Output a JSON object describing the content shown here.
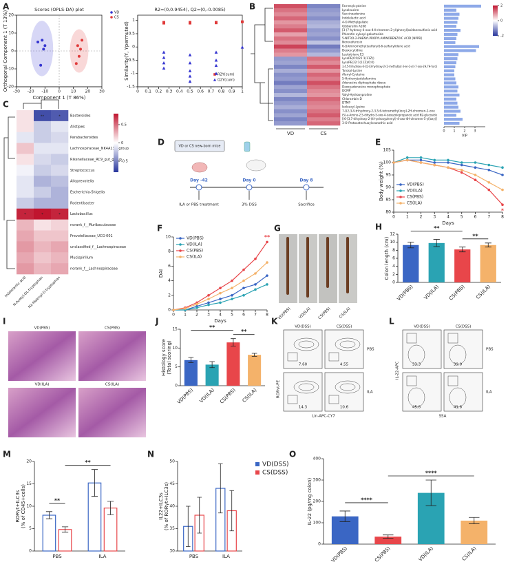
{
  "chart_data": [
    {
      "panel": "A",
      "type": "scatter",
      "title": "Scores (OPLS-DA) plot",
      "xlabel": "Component 1 (T 86%)",
      "ylabel": "Orthogonal Component 1 (T 13%)",
      "xlim": [
        -30,
        30
      ],
      "xticks": [
        -30,
        -20,
        -10,
        0,
        10,
        20,
        30
      ],
      "ylim": [
        -20,
        20
      ],
      "yticks": [
        -20,
        -10,
        0,
        10,
        20
      ],
      "ellipse": true,
      "legend": "right",
      "series": [
        {
          "name": "VD",
          "color": "#3535d0",
          "marker": "circle",
          "x": [
            -15,
            -12,
            -10,
            -13,
            -11
          ],
          "y": [
            5,
            6,
            3,
            -8,
            1
          ]
        },
        {
          "name": "CS",
          "color": "#e03a3a",
          "marker": "circle",
          "x": [
            13,
            15,
            14,
            16,
            12
          ],
          "y": [
            3,
            1,
            -3,
            6,
            -7
          ]
        }
      ]
    },
    {
      "type": "scatter",
      "title": "R2=(0,0.9454), Q2=(0,-0.0085)",
      "ylabel": "Similarity(Y, Ypermuted)",
      "xlim": [
        0,
        1
      ],
      "xticks": [
        0,
        0.1,
        0.2,
        0.3,
        0.4,
        0.5,
        0.6,
        0.7,
        0.8,
        0.9,
        1
      ],
      "ylim": [
        -1.5,
        1.2
      ],
      "yticks": [
        -1.5,
        -1,
        -0.5,
        0,
        0.5,
        1
      ],
      "legend": "lower right",
      "series": [
        {
          "name": "R2Y(cum)",
          "color": "#e03a3a",
          "marker": "square",
          "x": [
            1,
            0.25,
            0.25,
            0.5,
            0.5,
            0.75,
            0.75
          ],
          "y": [
            0.95,
            0.93,
            0.9,
            0.93,
            0.9,
            0.93,
            0.91
          ]
        },
        {
          "name": "Q2Y(cum)",
          "color": "#3535d0",
          "marker": "triangle",
          "x": [
            1,
            0.25,
            0.25,
            0.25,
            0.25,
            0.5,
            0.5,
            0.5,
            0.5,
            0.5,
            0.75,
            0.75,
            0.75,
            0.75
          ],
          "y": [
            -0.01,
            -0.2,
            -0.4,
            -0.6,
            -0.8,
            -0.3,
            -0.6,
            -0.9,
            -1.1,
            -1.3,
            -0.2,
            -0.5,
            -0.7,
            -1.0
          ]
        }
      ]
    },
    {
      "panel": "B",
      "type": "heatmap",
      "columns": [
        "VD",
        "CS"
      ],
      "clim": [
        -2,
        2
      ],
      "colorbar_ticks": [
        2,
        0,
        -2
      ],
      "rows": [
        "Farnesylcysteine",
        "Lysoleucine",
        "Succinoadenine",
        "Indolelactic acid",
        "4-O-Methylgallate",
        "Gibberellin A108",
        "[3-(7-hydroxy-4-oxo-4H-chromen-2-yl)phenyl]oxidanesulfonic acid",
        "Phloretin xylosyl-galactoside",
        "5-NITRO-2-PHENYLPROPYLAMINOBENZOIC ACID [NPPB]",
        "Norevafurosin",
        "6-[(Aminomethyl)sulfanyl]-6-sulfanylidene acid",
        "Deoxycytidine",
        "Leukotriene E3",
        "LysoPE(0:0/22:1(11Z))",
        "LysoPE(22:1(11Z)/0:0)",
        "3,4,5-trihydroxy-6-[(2-[3-hydroxy-2-(2-methylbut-3-en-2-yl)-7-oxo-2H,7H-furo]",
        "Tyrosyl-Lysine",
        "Alanyl-Cysteine",
        "5-Hydroxytadalafamine",
        "Adenosine diphosphate ribose",
        "Deoxyadenosine monophosphate",
        "DCMP",
        "Valyl-Hydroxyproline",
        "Chlorambin D",
        "DTMP",
        "Isoleucyl-Lysine",
        "7-[(2,3,4-trihydroxy-2,3,5,6-tetramethyl)oxy]-2H-chromen-2-one",
        "(S)-a-Amino-2,5-dihydro-5-oxo-4-isoxazolepropanoic acid N2-glucoside",
        "[(6-[3,7-dihydroxy-2-(4-hydroxyphenyl)-4-oxo-4H-chromen-5-yl]oxy)]",
        "3-O-Protocatechuoylceanothic acid"
      ],
      "values": [
        [
          1.5,
          -1.2
        ],
        [
          1.2,
          -1.0
        ],
        [
          1.0,
          -0.9
        ],
        [
          1.3,
          -1.1
        ],
        [
          0.9,
          -0.8
        ],
        [
          1.1,
          -0.7
        ],
        [
          1.4,
          -1.0
        ],
        [
          0.8,
          -0.9
        ],
        [
          1.2,
          -1.1
        ],
        [
          1.0,
          -0.6
        ],
        [
          1.6,
          -1.3
        ],
        [
          1.1,
          -1.0
        ],
        [
          0.9,
          -0.7
        ],
        [
          -1.0,
          1.2
        ],
        [
          -0.9,
          1.0
        ],
        [
          -1.2,
          1.4
        ],
        [
          -0.8,
          0.9
        ],
        [
          -1.1,
          1.3
        ],
        [
          -1.0,
          1.1
        ],
        [
          -1.3,
          1.5
        ],
        [
          -0.9,
          1.2
        ],
        [
          -1.1,
          1.0
        ],
        [
          -0.7,
          0.9
        ],
        [
          -1.2,
          1.3
        ],
        [
          -1.0,
          1.1
        ],
        [
          -0.8,
          1.0
        ],
        [
          -1.1,
          1.2
        ],
        [
          -0.9,
          1.4
        ],
        [
          -1.2,
          1.1
        ],
        [
          -1.0,
          1.3
        ]
      ],
      "vip": [
        3.6,
        1.2,
        1.5,
        1.4,
        1.3,
        1.2,
        1.6,
        1.3,
        1.2,
        1.1,
        3.4,
        3.1,
        1.4,
        1.3,
        1.2,
        1.1,
        1.0,
        1.0,
        1.1,
        1.2,
        1.4,
        1.3,
        1.5,
        1.2,
        1.3,
        1.4,
        1.6,
        1.2,
        1.8,
        1.5
      ],
      "vip_lim": [
        0,
        4
      ],
      "vip_ticks": [
        0,
        1,
        2,
        3
      ],
      "vip_label": "VIP",
      "vip_color": "#8ea9e8"
    },
    {
      "panel": "C",
      "type": "heatmap",
      "columns": [
        "Indolelactic acid",
        "N-Acetyl-DL-tryptophan",
        "N2-Malonyl-D-tryptophan"
      ],
      "clim": [
        -0.8,
        0.8
      ],
      "colorbar_ticks": [
        0.5,
        0,
        -0.5
      ],
      "rows": [
        "Bacteroides",
        "Alistipes",
        "Parabacteroides",
        "Lachnospiraceae_NK4A136_group",
        "Rikenellaceae_RC9_gut_group",
        "Streptococcus",
        "Alloprevotella",
        "Escherichia-Shigella",
        "Rodentibacter",
        "Lactobacillus",
        "norank_f__Muribaculaceae",
        "Prevotellaceae_UCG-001",
        "unclassified_f__Lachnospiraceae",
        "Mucispirillum",
        "norank_f__Lachnospiraceae"
      ],
      "values": [
        [
          0.1,
          -0.7,
          -0.65
        ],
        [
          0.1,
          -0.2,
          -0.1
        ],
        [
          -0.1,
          -0.2,
          -0.15
        ],
        [
          0.2,
          -0.1,
          -0.1
        ],
        [
          0.1,
          -0.15,
          -0.2
        ],
        [
          -0.05,
          -0.2,
          -0.15
        ],
        [
          -0.1,
          -0.3,
          -0.25
        ],
        [
          -0.1,
          -0.2,
          -0.3
        ],
        [
          -0.2,
          -0.3,
          -0.3
        ],
        [
          0.75,
          0.8,
          0.75
        ],
        [
          0.25,
          0.1,
          0.15
        ],
        [
          0.3,
          0.2,
          0.2
        ],
        [
          0.35,
          0.25,
          0.3
        ],
        [
          0.3,
          0.2,
          0.25
        ],
        [
          0.35,
          0.25,
          0.3
        ]
      ],
      "stars": [
        {
          "row": 0,
          "col": 1,
          "text": "**"
        },
        {
          "row": 0,
          "col": 2,
          "text": "*"
        },
        {
          "row": 9,
          "col": 0,
          "text": "*"
        },
        {
          "row": 9,
          "col": 1,
          "text": "*"
        },
        {
          "row": 9,
          "col": 2,
          "text": "*"
        }
      ]
    },
    {
      "panel": "E",
      "type": "line",
      "ylabel": "Body weight (%)",
      "xlabel": "Days",
      "x": [
        0,
        1,
        2,
        3,
        4,
        5,
        6,
        7,
        8
      ],
      "xlim": [
        0,
        8
      ],
      "xticks": [
        0,
        1,
        2,
        3,
        4,
        5,
        6,
        7,
        8
      ],
      "ylim": [
        80,
        105
      ],
      "yticks": [
        80,
        85,
        90,
        95,
        100,
        105
      ],
      "legend": "lower left",
      "series": [
        {
          "name": "VD(PBS)",
          "color": "#3a66c4",
          "values": [
            100,
            101,
            101,
            100,
            100,
            99,
            98,
            97,
            95
          ]
        },
        {
          "name": "VD(ILA)",
          "color": "#2aa3b3",
          "values": [
            100,
            102,
            102,
            101,
            101,
            100,
            100,
            99,
            98
          ]
        },
        {
          "name": "CS(PBS)",
          "color": "#e8464a",
          "values": [
            100,
            101,
            100,
            99,
            98,
            96,
            93,
            89,
            83
          ],
          "annotation": "*"
        },
        {
          "name": "CS(ILA)",
          "color": "#f4b26a",
          "values": [
            100,
            101,
            100,
            99,
            98,
            97,
            95,
            92,
            89
          ]
        }
      ]
    },
    {
      "panel": "F",
      "type": "line",
      "ylabel": "DAI",
      "xlabel": "Days",
      "x": [
        0,
        1,
        2,
        3,
        4,
        5,
        6,
        7,
        8
      ],
      "xlim": [
        0,
        8
      ],
      "xticks": [
        0,
        1,
        2,
        3,
        4,
        5,
        6,
        7,
        8
      ],
      "ylim": [
        0,
        10
      ],
      "yticks": [
        0,
        2,
        4,
        6,
        8,
        10
      ],
      "legend": "upper left",
      "series": [
        {
          "name": "VD(PBS)",
          "color": "#3a66c4",
          "values": [
            0,
            0,
            0.5,
            1,
            1.5,
            2,
            3,
            3.5,
            4.7
          ]
        },
        {
          "name": "VD(ILA)",
          "color": "#2aa3b3",
          "values": [
            0,
            0,
            0.3,
            0.7,
            1,
            1.5,
            2,
            2.8,
            3.5
          ]
        },
        {
          "name": "CS(PBS)",
          "color": "#e8464a",
          "values": [
            0,
            0.3,
            1,
            2,
            3,
            4,
            5.5,
            7,
            9.3
          ],
          "annotation": "**"
        },
        {
          "name": "CS(ILA)",
          "color": "#f4b26a",
          "values": [
            0,
            0.2,
            0.8,
            1.5,
            2.3,
            3,
            4,
            5,
            6.5
          ]
        }
      ]
    },
    {
      "panel": "H",
      "type": "bar",
      "ylabel": [
        "Colon length (cm)"
      ],
      "categories": [
        "VD(PBS)",
        "VD(ILA)",
        "CS(PBS)",
        "CS(ILA)"
      ],
      "values": [
        9.3,
        9.8,
        8.2,
        9.3
      ],
      "errors": [
        0.7,
        0.9,
        0.6,
        0.5
      ],
      "colors": [
        "#3a66c4",
        "#2aa3b3",
        "#e8464a",
        "#f4b26a"
      ],
      "ylim": [
        0,
        12
      ],
      "yticks": [
        0,
        2,
        4,
        6,
        8,
        10,
        12
      ],
      "brackets": [
        {
          "pair": [
            0,
            2
          ],
          "text": "**"
        },
        {
          "pair": [
            2,
            3
          ],
          "text": "**"
        }
      ]
    },
    {
      "panel": "J",
      "type": "bar",
      "ylabel": [
        "Histology score",
        "(Total scoring)"
      ],
      "categories": [
        "VD(PBS)",
        "VD(ILA)",
        "CS(PBS)",
        "CS(ILA)"
      ],
      "values": [
        6.8,
        5.6,
        11.5,
        8.2
      ],
      "errors": [
        0.7,
        0.8,
        1.0,
        0.4
      ],
      "colors": [
        "#3a66c4",
        "#2aa3b3",
        "#e8464a",
        "#f4b26a"
      ],
      "ylim": [
        0,
        15
      ],
      "yticks": [
        0,
        5,
        10,
        15
      ],
      "brackets": [
        {
          "pair": [
            0,
            2
          ],
          "text": "**"
        },
        {
          "pair": [
            2,
            3
          ],
          "text": "**"
        }
      ]
    },
    {
      "panel": "M",
      "type": "bar",
      "bar_style": "outline",
      "ylabel": [
        "RORγt+ILC3s",
        "(% of CD45+cells)"
      ],
      "categories": [
        "PBS",
        "ILA"
      ],
      "ylim": [
        0,
        20
      ],
      "yticks": [
        0,
        5,
        10,
        15,
        20
      ],
      "series": [
        {
          "color": "#3a66c4",
          "values": [
            8,
            15.2
          ],
          "errors": [
            0.8,
            3
          ]
        },
        {
          "color": "#e8464a",
          "values": [
            4.8,
            9.6
          ],
          "errors": [
            0.6,
            1.5
          ]
        }
      ],
      "brackets": [
        {
          "pair": [
            0,
            1
          ],
          "text": "**"
        },
        {
          "pair": [
            1,
            3
          ],
          "text": "**"
        }
      ]
    },
    {
      "panel": "N",
      "type": "bar",
      "bar_style": "outline",
      "ylabel": [
        "IL22+ILC3s",
        "(% of RORγt+ILC3s)"
      ],
      "categories": [
        "PBS",
        "ILA"
      ],
      "ylim": [
        30,
        50
      ],
      "yticks": [
        30,
        35,
        40,
        45,
        50
      ],
      "legend": "right",
      "series": [
        {
          "name": "VD(DSS)",
          "color": "#3a66c4",
          "values": [
            35.5,
            44
          ],
          "errors": [
            4.5,
            5.5
          ]
        },
        {
          "name": "CS(DSS)",
          "color": "#e8464a",
          "values": [
            38,
            39
          ],
          "errors": [
            4,
            4.5
          ]
        }
      ]
    },
    {
      "panel": "O",
      "type": "bar",
      "ylabel": [
        "IL-22 (pg/mg colon)"
      ],
      "categories": [
        "VD(PBS)",
        "CS(PBS)",
        "VD(ILA)",
        "CS(ILA)"
      ],
      "values": [
        130,
        35,
        240,
        110
      ],
      "errors": [
        25,
        8,
        60,
        15
      ],
      "colors": [
        "#3a66c4",
        "#e8464a",
        "#2aa3b3",
        "#f4b26a"
      ],
      "ylim": [
        0,
        400
      ],
      "yticks": [
        0,
        100,
        200,
        300,
        400
      ],
      "brackets": [
        {
          "pair": [
            0,
            1
          ],
          "text": "****"
        },
        {
          "pair": [
            1,
            3
          ],
          "text": "****"
        }
      ]
    }
  ],
  "figures": {
    "D": {
      "panel": "D",
      "box": "VD or CS new-born mice",
      "timeline": [
        "Day -42",
        "Day 0",
        "Day 8"
      ],
      "events": [
        "ILA or PBS treatment",
        "3% DSS",
        "Sacrifice"
      ]
    },
    "G": {
      "panel": "G",
      "labels": [
        "VD(PBS)",
        "VD(ILA)",
        "CS(PBS)",
        "CS(ILA)"
      ]
    },
    "I": {
      "panel": "I",
      "labels": [
        "VD(PBS)",
        "CS(PBS)",
        "VD(ILA)",
        "CS(ILA)"
      ]
    },
    "K": {
      "panel": "K",
      "columns": [
        "VD(DSS)",
        "CS(DSS)"
      ],
      "rows": [
        "PBS",
        "ILA"
      ],
      "gates": [
        "7.60",
        "4.55",
        "14.3",
        "10.6"
      ],
      "ylabel": "RORγt-PE",
      "xlabel": "Lin-APC-CY7"
    },
    "L": {
      "panel": "L",
      "columns": [
        "VD(DSS)",
        "CS(DSS)"
      ],
      "rows": [
        "PBS",
        "ILA"
      ],
      "gates": [
        "33.3",
        "39.0",
        "45.8",
        "41.8"
      ],
      "ylabel": "IL-22-APC",
      "xlabel": "SSA"
    }
  }
}
